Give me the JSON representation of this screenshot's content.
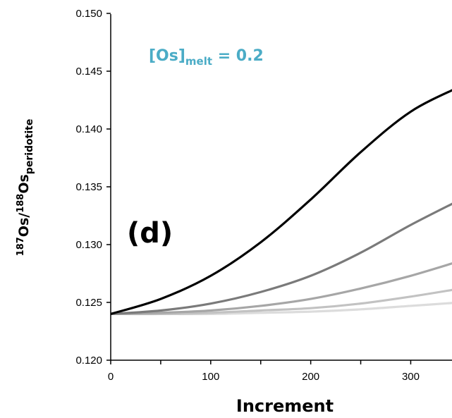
{
  "chart_data": {
    "type": "line",
    "xlabel": "Increment",
    "ylabel": {
      "sup1": "187",
      "base1": "Os/",
      "sup2": "188",
      "base2": "Os",
      "sub": "peridotite"
    },
    "panel_label": "(d)",
    "annotation": {
      "base": "[Os]",
      "sub": "melt",
      "rest": " = 0.2",
      "color": "#4bacc6"
    },
    "xlim": [
      0,
      350
    ],
    "ylim": [
      0.12,
      0.15
    ],
    "x_ticks": [
      0,
      100,
      200,
      300
    ],
    "x_tick_labels": [
      "0",
      "100",
      "200",
      "300"
    ],
    "x_minor_step": 50,
    "y_ticks": [
      0.12,
      0.125,
      0.13,
      0.135,
      0.14,
      0.145,
      0.15
    ],
    "y_tick_labels": [
      "0.120",
      "0.125",
      "0.130",
      "0.135",
      "0.140",
      "0.145",
      "0.150"
    ],
    "grid": false,
    "series": [
      {
        "color": "#000000",
        "x": [
          0,
          50,
          100,
          150,
          200,
          250,
          300,
          350
        ],
        "y": [
          0.124,
          0.1253,
          0.1273,
          0.1302,
          0.1339,
          0.138,
          0.1415,
          0.1437
        ]
      },
      {
        "color": "#7a7a7a",
        "x": [
          0,
          50,
          100,
          150,
          200,
          250,
          300,
          350
        ],
        "y": [
          0.124,
          0.1243,
          0.1249,
          0.1259,
          0.1273,
          0.1293,
          0.1317,
          0.1339
        ]
      },
      {
        "color": "#a6a6a6",
        "x": [
          0,
          50,
          100,
          150,
          200,
          250,
          300,
          350
        ],
        "y": [
          0.124,
          0.1241,
          0.1243,
          0.1247,
          0.1253,
          0.1262,
          0.1273,
          0.1286
        ]
      },
      {
        "color": "#c2c2c2",
        "x": [
          0,
          50,
          100,
          150,
          200,
          250,
          300,
          350
        ],
        "y": [
          0.124,
          0.124,
          0.1241,
          0.1243,
          0.1245,
          0.1249,
          0.1255,
          0.1262
        ]
      },
      {
        "color": "#dcdcdc",
        "x": [
          0,
          50,
          100,
          150,
          200,
          250,
          300,
          350
        ],
        "y": [
          0.124,
          0.124,
          0.124,
          0.1241,
          0.1242,
          0.1244,
          0.1247,
          0.125
        ]
      }
    ]
  }
}
